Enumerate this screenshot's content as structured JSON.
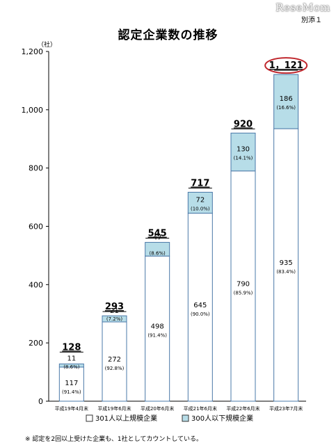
{
  "watermark": "ReseMom",
  "attachment_label": "別添１",
  "footnote": "※  認定を2回以上受けた企業も、1社としてカウントしている。",
  "colors": {
    "large": "#ffffff",
    "small": "#b7dde8",
    "outline": "#4a78a8",
    "highlight": "#c0272d"
  },
  "chart_data": {
    "type": "bar",
    "stacked": true,
    "title": "認定企業数の推移",
    "unit_label": "（社）",
    "xlabel": "",
    "ylabel": "",
    "ylim": [
      0,
      1200
    ],
    "yticks": [
      "0",
      "200",
      "400",
      "600",
      "800",
      "1,000",
      "1,200"
    ],
    "ytick_values": [
      0,
      200,
      400,
      600,
      800,
      1000,
      1200
    ],
    "categories": [
      "平成19年4月末",
      "平成19年6月末",
      "平成20年6月末",
      "平成21年6月末",
      "平成22年6月末",
      "平成23年7月末"
    ],
    "totals": [
      128,
      293,
      545,
      717,
      920,
      1121
    ],
    "total_labels": [
      "128",
      "293",
      "545",
      "717",
      "920",
      "1，121"
    ],
    "highlighted_total_index": 5,
    "series": [
      {
        "name": "301人以上規模企業",
        "values": [
          117,
          272,
          498,
          645,
          790,
          935
        ],
        "percent_labels": [
          "(91.4%)",
          "(92.8%)",
          "(91.4%)",
          "(90.0%)",
          "(85.9%)",
          "(83.4%)"
        ]
      },
      {
        "name": "300人以下規模企業",
        "values": [
          11,
          21,
          47,
          72,
          130,
          186
        ],
        "percent_labels": [
          "(8.6%)",
          "(7.2%)",
          "(8.6%)",
          "(10.0%)",
          "(14.1%)",
          "(16.6%)"
        ]
      }
    ],
    "legend_position": "bottom",
    "grid": false
  }
}
